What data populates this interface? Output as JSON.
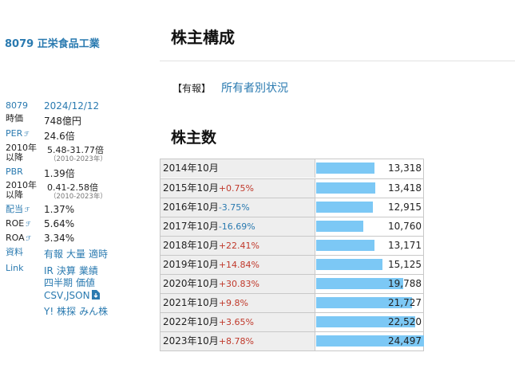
{
  "company": {
    "code": "8079",
    "name": "正栄食品工業"
  },
  "side": {
    "code": "8079",
    "date": "2024/12/12",
    "marketcap_label": "時価",
    "marketcap_value": "748億円",
    "per_label": "PER",
    "per_value": "24.6倍",
    "range_label_1": "2010年",
    "range_label_2": "以降",
    "per_range": "5.48-31.77倍",
    "per_range_years": "（2010-2023年）",
    "pbr_label": "PBR",
    "pbr_value": "1.39倍",
    "pbr_range": "0.41-2.58倍",
    "pbr_range_years": "（2010-2023年）",
    "yield_label": "配当",
    "yield_value": "1.37%",
    "roe_label": "ROE",
    "roe_value": "5.64%",
    "roa_label": "ROA",
    "roa_value": "3.34%",
    "docs_label": "資料",
    "docs_links": [
      "有報",
      "大量",
      "適時"
    ],
    "link_label": "Link",
    "link_row1": [
      "IR",
      "決算",
      "業績"
    ],
    "link_row2": [
      "四半期",
      "価値"
    ],
    "link_row3": [
      "CSV,JSON"
    ],
    "link_row4": [
      "Y!",
      "株探",
      "みん株"
    ],
    "mark_glyph": "ℱ"
  },
  "main": {
    "title": "株主構成",
    "report_tag": "【有報】",
    "report_link": "所有者別状況",
    "section_title": "株主数"
  },
  "chart_data": {
    "type": "bar",
    "title": "株主数",
    "categories": [
      "2014年10月",
      "2015年10月",
      "2016年10月",
      "2017年10月",
      "2018年10月",
      "2019年10月",
      "2020年10月",
      "2021年10月",
      "2022年10月",
      "2023年10月"
    ],
    "changes": [
      "",
      "+0.75%",
      "-3.75%",
      "-16.69%",
      "+22.41%",
      "+14.84%",
      "+30.83%",
      "+9.8%",
      "+3.65%",
      "+8.78%"
    ],
    "value_labels": [
      "13,318",
      "13,418",
      "12,915",
      "10,760",
      "13,171",
      "15,125",
      "19,788",
      "21,727",
      "22,520",
      "24,497"
    ],
    "values": [
      13318,
      13418,
      12915,
      10760,
      13171,
      15125,
      19788,
      21727,
      22520,
      24497
    ],
    "ylim": [
      0,
      24497
    ],
    "bar_color": "#7cc8f5"
  }
}
